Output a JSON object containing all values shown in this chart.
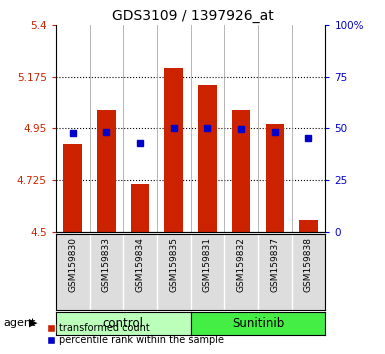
{
  "title": "GDS3109 / 1397926_at",
  "samples": [
    "GSM159830",
    "GSM159833",
    "GSM159834",
    "GSM159835",
    "GSM159831",
    "GSM159832",
    "GSM159837",
    "GSM159838"
  ],
  "bar_values": [
    4.88,
    5.03,
    4.71,
    5.21,
    5.14,
    5.03,
    4.97,
    4.55
  ],
  "bar_base": 4.5,
  "blue_values": [
    4.93,
    4.935,
    4.885,
    4.95,
    4.95,
    4.948,
    4.935,
    4.91
  ],
  "ylim_left": [
    4.5,
    5.4
  ],
  "ylim_right": [
    0,
    100
  ],
  "yticks_left": [
    4.5,
    4.725,
    4.95,
    5.175,
    5.4
  ],
  "ytick_labels_left": [
    "4.5",
    "4.725",
    "4.95",
    "5.175",
    "5.4"
  ],
  "yticks_right": [
    0,
    25,
    50,
    75,
    100
  ],
  "ytick_labels_right": [
    "0",
    "25",
    "50",
    "75",
    "100%"
  ],
  "bar_color": "#cc2200",
  "blue_color": "#0000cc",
  "control_color": "#bbffbb",
  "sunitinib_color": "#44ee44",
  "tick_color_left": "#cc2200",
  "tick_color_right": "#0000cc",
  "group_label_control": "control",
  "group_label_sunitinib": "Sunitinib",
  "agent_label": "agent",
  "legend_bar": "transformed count",
  "legend_blue": "percentile rank within the sample",
  "grid_color": "#000000",
  "bg_color": "#ffffff",
  "bar_width": 0.55,
  "n_control": 4,
  "n_sunitinib": 4
}
